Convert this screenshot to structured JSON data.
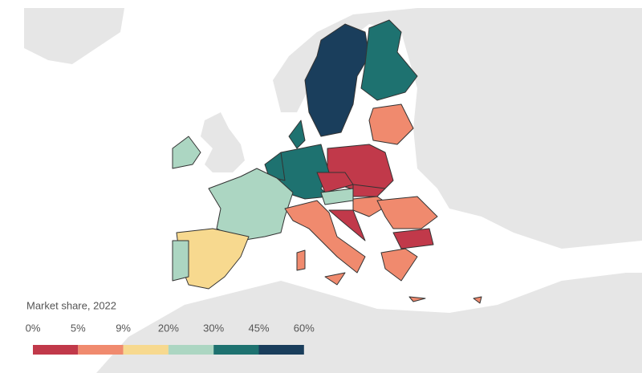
{
  "legend": {
    "title": "Market share, 2022",
    "ticks": [
      {
        "value": 0,
        "label": "0%"
      },
      {
        "value": 5,
        "label": "5%"
      },
      {
        "value": 9,
        "label": "9%"
      },
      {
        "value": 20,
        "label": "20%"
      },
      {
        "value": 30,
        "label": "30%"
      },
      {
        "value": 45,
        "label": "45%"
      },
      {
        "value": 60,
        "label": "60%"
      }
    ],
    "colors": [
      "#c1394a",
      "#f08a6e",
      "#f7d98f",
      "#acd6c2",
      "#1e7270",
      "#1a3e5c"
    ]
  }
}
